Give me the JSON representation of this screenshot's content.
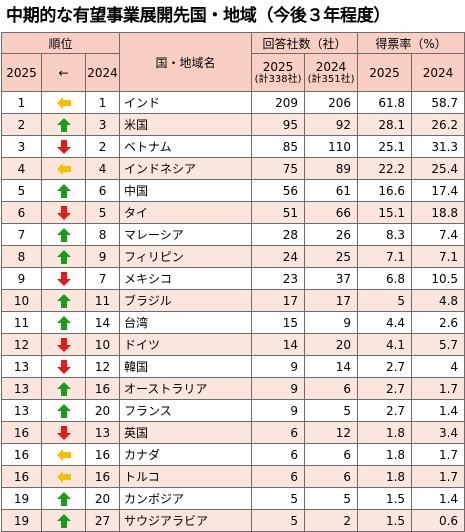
{
  "title": "中期的な有望事業展開先国・地域（今後３年程度）",
  "header": {
    "rank_group": "順位",
    "rank_2025": "2025",
    "rank_arrow": "←",
    "rank_2024": "2024",
    "country": "国・地域名",
    "count_group": "回答社数（社）",
    "count_2025": "2025",
    "count_2025_sub": "(計338社)",
    "count_2024": "2024",
    "count_2024_sub": "(計351社)",
    "rate_group": "得票率（%）",
    "rate_2025": "2025",
    "rate_2024": "2024"
  },
  "colors": {
    "up": "#1a9b1a",
    "down": "#e21b1b",
    "same": "#f2c200",
    "header_bg": "#f9cfc3",
    "stripe_bg": "#fbe6de"
  },
  "rows": [
    {
      "r25": "1",
      "trend": "same",
      "r24": "1",
      "name": "インド",
      "c25": "209",
      "c24": "206",
      "p25": "61.8",
      "p24": "58.7"
    },
    {
      "r25": "2",
      "trend": "up",
      "r24": "3",
      "name": "米国",
      "c25": "95",
      "c24": "92",
      "p25": "28.1",
      "p24": "26.2"
    },
    {
      "r25": "3",
      "trend": "down",
      "r24": "2",
      "name": "ベトナム",
      "c25": "85",
      "c24": "110",
      "p25": "25.1",
      "p24": "31.3"
    },
    {
      "r25": "4",
      "trend": "same",
      "r24": "4",
      "name": "インドネシア",
      "c25": "75",
      "c24": "89",
      "p25": "22.2",
      "p24": "25.4"
    },
    {
      "r25": "5",
      "trend": "up",
      "r24": "6",
      "name": "中国",
      "c25": "56",
      "c24": "61",
      "p25": "16.6",
      "p24": "17.4"
    },
    {
      "r25": "6",
      "trend": "down",
      "r24": "5",
      "name": "タイ",
      "c25": "51",
      "c24": "66",
      "p25": "15.1",
      "p24": "18.8"
    },
    {
      "r25": "7",
      "trend": "up",
      "r24": "8",
      "name": "マレーシア",
      "c25": "28",
      "c24": "26",
      "p25": "8.3",
      "p24": "7.4"
    },
    {
      "r25": "8",
      "trend": "up",
      "r24": "9",
      "name": "フィリピン",
      "c25": "24",
      "c24": "25",
      "p25": "7.1",
      "p24": "7.1"
    },
    {
      "r25": "9",
      "trend": "down",
      "r24": "7",
      "name": "メキシコ",
      "c25": "23",
      "c24": "37",
      "p25": "6.8",
      "p24": "10.5"
    },
    {
      "r25": "10",
      "trend": "up",
      "r24": "11",
      "name": "ブラジル",
      "c25": "17",
      "c24": "17",
      "p25": "5",
      "p24": "4.8"
    },
    {
      "r25": "11",
      "trend": "up",
      "r24": "14",
      "name": "台湾",
      "c25": "15",
      "c24": "9",
      "p25": "4.4",
      "p24": "2.6"
    },
    {
      "r25": "12",
      "trend": "down",
      "r24": "10",
      "name": "ドイツ",
      "c25": "14",
      "c24": "20",
      "p25": "4.1",
      "p24": "5.7"
    },
    {
      "r25": "13",
      "trend": "down",
      "r24": "12",
      "name": "韓国",
      "c25": "9",
      "c24": "14",
      "p25": "2.7",
      "p24": "4"
    },
    {
      "r25": "13",
      "trend": "up",
      "r24": "16",
      "name": "オーストラリア",
      "c25": "9",
      "c24": "6",
      "p25": "2.7",
      "p24": "1.7"
    },
    {
      "r25": "13",
      "trend": "up",
      "r24": "20",
      "name": "フランス",
      "c25": "9",
      "c24": "5",
      "p25": "2.7",
      "p24": "1.4"
    },
    {
      "r25": "16",
      "trend": "down",
      "r24": "13",
      "name": "英国",
      "c25": "6",
      "c24": "12",
      "p25": "1.8",
      "p24": "3.4"
    },
    {
      "r25": "16",
      "trend": "same",
      "r24": "16",
      "name": "カナダ",
      "c25": "6",
      "c24": "6",
      "p25": "1.8",
      "p24": "1.7"
    },
    {
      "r25": "16",
      "trend": "same",
      "r24": "16",
      "name": "トルコ",
      "c25": "6",
      "c24": "6",
      "p25": "1.8",
      "p24": "1.7"
    },
    {
      "r25": "19",
      "trend": "up",
      "r24": "20",
      "name": "カンボジア",
      "c25": "5",
      "c24": "5",
      "p25": "1.5",
      "p24": "1.4"
    },
    {
      "r25": "19",
      "trend": "up",
      "r24": "27",
      "name": "サウジアラビア",
      "c25": "5",
      "c24": "2",
      "p25": "1.5",
      "p24": "0.6"
    }
  ]
}
